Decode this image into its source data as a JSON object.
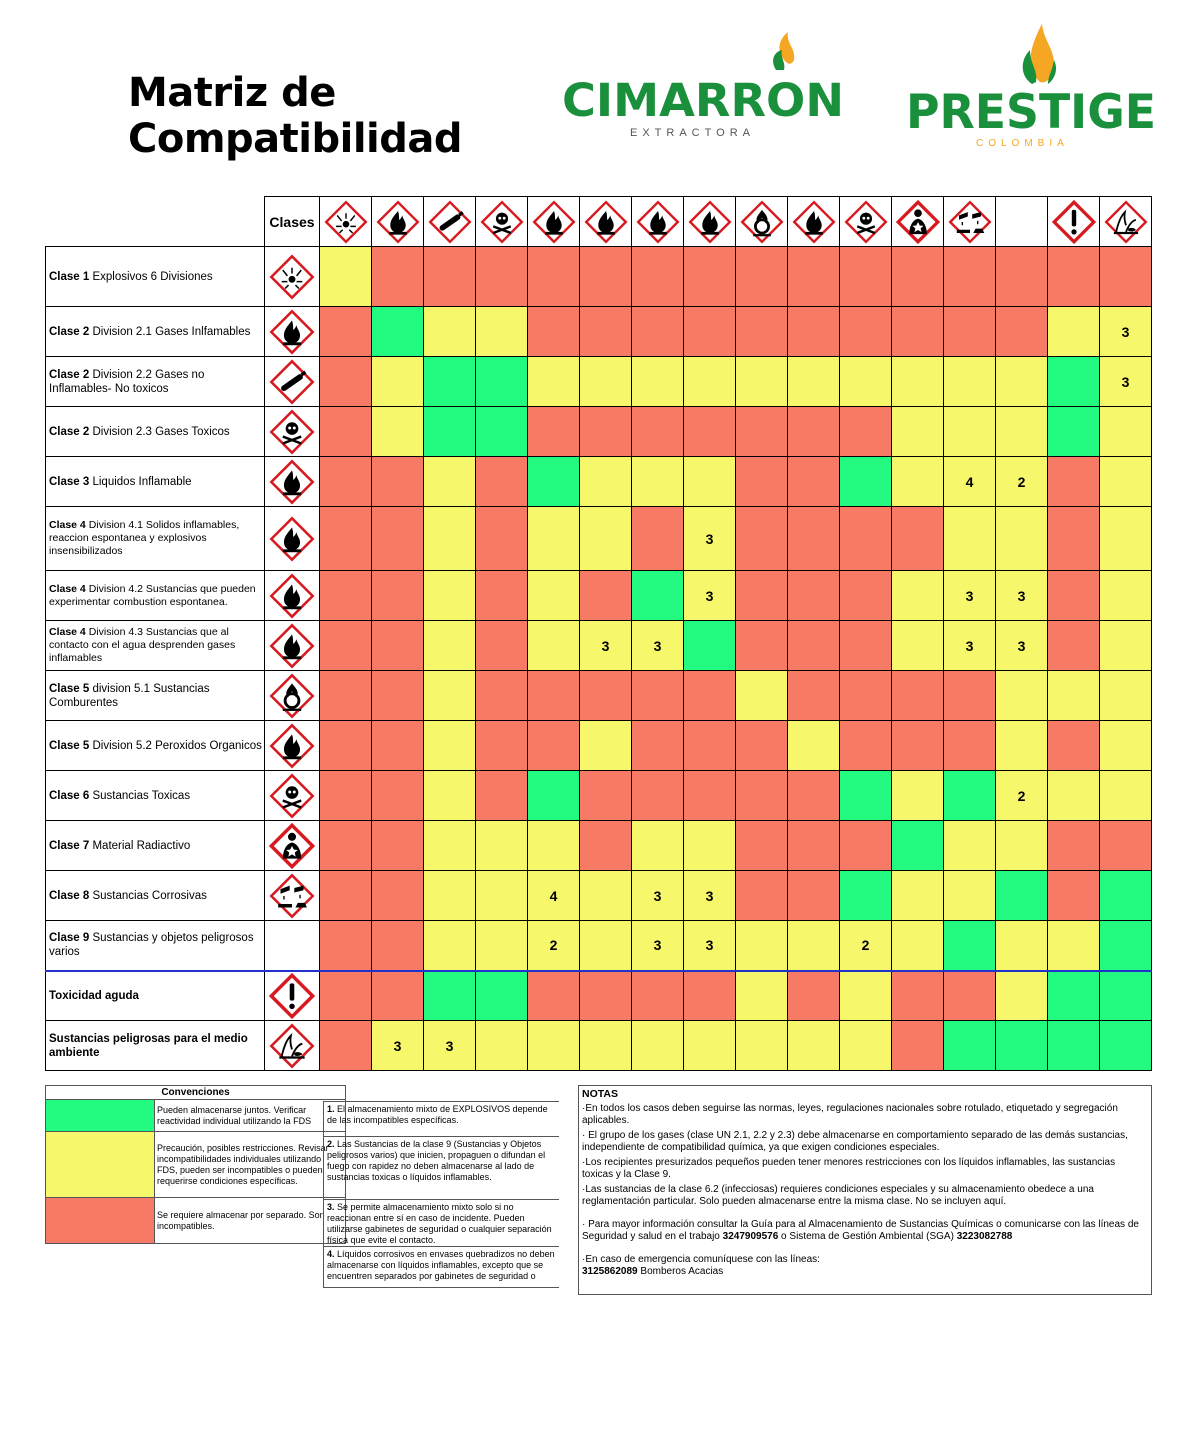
{
  "header": {
    "title_line1": "Matriz de",
    "title_line2": "Compatibilidad",
    "logo1": {
      "name": "CIMARRON",
      "sub": "EXTRACTORA"
    },
    "logo2": {
      "name": "PRESTIGE",
      "sub": "COLOMBIA"
    }
  },
  "colors": {
    "green": "#22FA80",
    "yellow": "#F7F76C",
    "red": "#F77A66"
  },
  "matrix": {
    "corner_label": "Clases",
    "columns": [
      {
        "icon": "explosive-icon"
      },
      {
        "icon": "flame-icon"
      },
      {
        "icon": "gas-cylinder-icon"
      },
      {
        "icon": "skull-icon"
      },
      {
        "icon": "flame-icon"
      },
      {
        "icon": "flame-icon"
      },
      {
        "icon": "flame-icon"
      },
      {
        "icon": "flame-icon"
      },
      {
        "icon": "flame-over-circle-icon"
      },
      {
        "icon": "flame-icon"
      },
      {
        "icon": "skull-icon"
      },
      {
        "icon": "health-hazard-icon"
      },
      {
        "icon": "corrosion-icon"
      },
      {
        "icon": ""
      },
      {
        "icon": "exclamation-icon"
      },
      {
        "icon": "environment-icon"
      }
    ],
    "rows": [
      {
        "bold": "Clase 1",
        "text": " Explosivos     6 Divisiones",
        "icon": "explosive-icon",
        "cells": [
          "Y",
          "R",
          "R",
          "R",
          "R",
          "R",
          "R",
          "R",
          "R",
          "R",
          "R",
          "R",
          "R",
          "R",
          "R",
          "R"
        ],
        "values": [
          "",
          "",
          "",
          "",
          "",
          "",
          "",
          "",
          "",
          "",
          "",
          "",
          "",
          "",
          "",
          ""
        ]
      },
      {
        "bold": "Clase 2",
        "text": " Division 2.1 Gases Inlfamables",
        "icon": "flame-icon",
        "cells": [
          "R",
          "G",
          "Y",
          "Y",
          "R",
          "R",
          "R",
          "R",
          "R",
          "R",
          "R",
          "R",
          "R",
          "R",
          "Y",
          "Y"
        ],
        "values": [
          "",
          "",
          "",
          "",
          "",
          "",
          "",
          "",
          "",
          "",
          "",
          "",
          "",
          "",
          "",
          "3"
        ]
      },
      {
        "bold": "Clase 2",
        "text": " Division 2.2 Gases no Inflamables- No toxicos",
        "icon": "gas-cylinder-icon",
        "cells": [
          "R",
          "Y",
          "G",
          "G",
          "Y",
          "Y",
          "Y",
          "Y",
          "Y",
          "Y",
          "Y",
          "Y",
          "Y",
          "Y",
          "G",
          "Y"
        ],
        "values": [
          "",
          "",
          "",
          "",
          "",
          "",
          "",
          "",
          "",
          "",
          "",
          "",
          "",
          "",
          "",
          "3"
        ]
      },
      {
        "bold": "Clase 2",
        "text": " Division 2.3 Gases Toxicos",
        "icon": "skull-icon",
        "cells": [
          "R",
          "Y",
          "G",
          "G",
          "R",
          "R",
          "R",
          "R",
          "R",
          "R",
          "R",
          "Y",
          "Y",
          "Y",
          "G",
          "Y"
        ],
        "values": [
          "",
          "",
          "",
          "",
          "",
          "",
          "",
          "",
          "",
          "",
          "",
          "",
          "",
          "",
          "",
          ""
        ]
      },
      {
        "bold": "Clase 3",
        "text": " Liquidos Inflamable",
        "icon": "flame-icon",
        "cells": [
          "R",
          "R",
          "Y",
          "R",
          "G",
          "Y",
          "Y",
          "Y",
          "R",
          "R",
          "G",
          "Y",
          "Y",
          "Y",
          "R",
          "Y"
        ],
        "values": [
          "",
          "",
          "",
          "",
          "",
          "",
          "",
          "",
          "",
          "",
          "",
          "",
          "4",
          "2",
          "",
          ""
        ]
      },
      {
        "bold": "Clase 4",
        "text": " Division 4.1 Solidos inflamables, reaccion espontanea y explosivos insensibilizados",
        "icon": "flame-icon",
        "small": true,
        "cells": [
          "R",
          "R",
          "Y",
          "R",
          "Y",
          "Y",
          "R",
          "Y",
          "R",
          "R",
          "R",
          "R",
          "Y",
          "Y",
          "R",
          "Y"
        ],
        "values": [
          "",
          "",
          "",
          "",
          "",
          "",
          "",
          "3",
          "",
          "",
          "",
          "",
          "",
          "",
          "",
          ""
        ]
      },
      {
        "bold": "Clase 4",
        "text": " Division 4.2  Sustancias que pueden experimentar combustion espontanea.",
        "icon": "flame-icon",
        "small": true,
        "cells": [
          "R",
          "R",
          "Y",
          "R",
          "Y",
          "R",
          "G",
          "Y",
          "R",
          "R",
          "R",
          "Y",
          "Y",
          "Y",
          "R",
          "Y"
        ],
        "values": [
          "",
          "",
          "",
          "",
          "",
          "",
          "",
          "3",
          "",
          "",
          "",
          "",
          "3",
          "3",
          "",
          ""
        ]
      },
      {
        "bold": "Clase 4",
        "text": " Division 4.3 Sustancias que al contacto con el agua  desprenden  gases inflamables",
        "icon": "flame-icon",
        "small": true,
        "cells": [
          "R",
          "R",
          "Y",
          "R",
          "Y",
          "Y",
          "Y",
          "G",
          "R",
          "R",
          "R",
          "Y",
          "Y",
          "Y",
          "R",
          "Y"
        ],
        "values": [
          "",
          "",
          "",
          "",
          "",
          "3",
          "3",
          "",
          "",
          "",
          "",
          "",
          "3",
          "3",
          "",
          ""
        ]
      },
      {
        "bold": "Clase 5",
        "text": " division 5.1 Sustancias Comburentes",
        "icon": "flame-over-circle-icon",
        "cells": [
          "R",
          "R",
          "Y",
          "R",
          "R",
          "R",
          "R",
          "R",
          "Y",
          "R",
          "R",
          "R",
          "R",
          "Y",
          "Y",
          "Y"
        ],
        "values": [
          "",
          "",
          "",
          "",
          "",
          "",
          "",
          "",
          "",
          "",
          "",
          "",
          "",
          "",
          "",
          ""
        ]
      },
      {
        "bold": "Clase 5",
        "text": " Division 5.2 Peroxidos Organicos",
        "icon": "flame-icon",
        "cells": [
          "R",
          "R",
          "Y",
          "R",
          "R",
          "Y",
          "R",
          "R",
          "R",
          "Y",
          "R",
          "R",
          "R",
          "Y",
          "R",
          "Y"
        ],
        "values": [
          "",
          "",
          "",
          "",
          "",
          "",
          "",
          "",
          "",
          "",
          "",
          "",
          "",
          "",
          "",
          ""
        ]
      },
      {
        "bold": "Clase 6",
        "text": " Sustancias Toxicas",
        "icon": "skull-icon",
        "cells": [
          "R",
          "R",
          "Y",
          "R",
          "G",
          "R",
          "R",
          "R",
          "R",
          "R",
          "G",
          "Y",
          "G",
          "Y",
          "Y",
          "Y"
        ],
        "values": [
          "",
          "",
          "",
          "",
          "",
          "",
          "",
          "",
          "",
          "",
          "",
          "",
          "",
          "2",
          "",
          ""
        ]
      },
      {
        "bold": "Clase 7",
        "text": " Material Radiactivo",
        "icon": "health-hazard-icon",
        "cells": [
          "R",
          "R",
          "Y",
          "Y",
          "Y",
          "R",
          "Y",
          "Y",
          "R",
          "R",
          "R",
          "G",
          "Y",
          "Y",
          "R",
          "R"
        ],
        "values": [
          "",
          "",
          "",
          "",
          "",
          "",
          "",
          "",
          "",
          "",
          "",
          "",
          "",
          "",
          "",
          ""
        ]
      },
      {
        "bold": "Clase 8",
        "text": " Sustancias Corrosivas",
        "icon": "corrosion-icon",
        "cells": [
          "R",
          "R",
          "Y",
          "Y",
          "Y",
          "Y",
          "Y",
          "Y",
          "R",
          "R",
          "G",
          "Y",
          "Y",
          "G",
          "R",
          "G"
        ],
        "values": [
          "",
          "",
          "",
          "",
          "4",
          "",
          "3",
          "3",
          "",
          "",
          "",
          "",
          "",
          "",
          "",
          ""
        ]
      },
      {
        "bold": "Clase 9",
        "text": " Sustancias y objetos peligrosos varios",
        "icon": "",
        "cells": [
          "R",
          "R",
          "Y",
          "Y",
          "Y",
          "Y",
          "Y",
          "Y",
          "Y",
          "Y",
          "Y",
          "Y",
          "G",
          "Y",
          "Y",
          "G"
        ],
        "values": [
          "",
          "",
          "",
          "",
          "2",
          "",
          "3",
          "3",
          "",
          "",
          "2",
          "",
          "",
          "",
          "",
          ""
        ]
      },
      {
        "bold": "Toxicidad aguda",
        "text": "",
        "icon": "exclamation-icon",
        "sep": true,
        "cells": [
          "R",
          "R",
          "G",
          "G",
          "R",
          "R",
          "R",
          "R",
          "Y",
          "R",
          "Y",
          "R",
          "R",
          "Y",
          "G",
          "G"
        ],
        "values": [
          "",
          "",
          "",
          "",
          "",
          "",
          "",
          "",
          "",
          "",
          "",
          "",
          "",
          "",
          "",
          ""
        ]
      },
      {
        "bold": "Sustancias peligrosas para el medio ambiente",
        "text": "",
        "icon": "environment-icon",
        "cells": [
          "R",
          "Y",
          "Y",
          "Y",
          "Y",
          "Y",
          "Y",
          "Y",
          "Y",
          "Y",
          "Y",
          "R",
          "G",
          "G",
          "G",
          "G"
        ],
        "values": [
          "",
          "3",
          "3",
          "",
          "",
          "",
          "",
          "",
          "",
          "",
          "",
          "",
          "",
          "",
          "",
          ""
        ]
      }
    ]
  },
  "conventions": {
    "title": "Convenciones",
    "items": [
      {
        "color": "green",
        "text": "Pueden almacenarse juntos. Verificar reactividad individual utilizando la FDS"
      },
      {
        "color": "yellow",
        "text": "Precaución, posibles restricciones. Revisar incompatibilidades individuales utilizando FDS, pueden  ser incompatibles o pueden requerirse condiciones específicas."
      },
      {
        "color": "red",
        "text": "Se requiere almacenar por separado. Son incompatibles."
      }
    ],
    "notes": [
      {
        "num": "1.",
        "text": "    El almacenamiento mixto de EXPLOSIVOS depende de las incompatibles específicas."
      },
      {
        "num": "2.",
        "text": "    Las Sustancias de la clase 9 (Sustancias y Objetos peligrosos varios) que inicien, propaguen o difundan el fuego  con rapidez no deben almacenarse al lado de sustancias toxicas o líquidos inflamables."
      },
      {
        "num": "3.",
        "text": "    Se permite almacenamiento mixto solo si no reaccionan entre sí en caso de incidente. Pueden utilizarse gabinetes de seguridad o cualquier separación física que evite el contacto."
      },
      {
        "num": "4.",
        "text": "    Líquidos  corrosivos en envases quebradizos no deben almacenarse con líquidos inflamables, excepto que se encuentren separados por gabinetes de seguridad o"
      }
    ]
  },
  "notas": {
    "title": "NOTAS",
    "items": [
      "·En todos los casos deben seguirse  las normas, leyes, regulaciones nacionales sobre rotulado, etiquetado y segregación aplicables.",
      "· El grupo de los gases (clase UN 2.1, 2.2 y 2.3) debe almacenarse en comportamiento separado de las demás sustancias, independiente de compatibilidad química, ya que exigen condiciones especiales.",
      "·Los recipientes presurizados pequeños pueden tener menores restricciones con los líquidos inflamables, las sustancias toxicas y la Clase 9.",
      "·Las sustancias de la clase 6.2 (infecciosas) requieres condiciones especiales y su almacenamiento obedece a una reglamentación particular. Solo pueden almacenarse entre la misma clase. No se incluyen aquí."
    ],
    "info_prefix": "·  Para mayor información consultar la Guía para al Almacenamiento de Sustancias Químicas o comunicarse con las líneas de Seguridad y salud en el trabajo ",
    "info_phone1": "3247909576",
    "info_mid": " o Sistema de Gestión Ambiental (SGA) ",
    "info_phone2": "3223082788",
    "emergency_text": "·En caso de emergencia comuníquese con las líneas:",
    "emergency_phone": "3125862089",
    "emergency_suffix": " Bomberos Acacias"
  }
}
